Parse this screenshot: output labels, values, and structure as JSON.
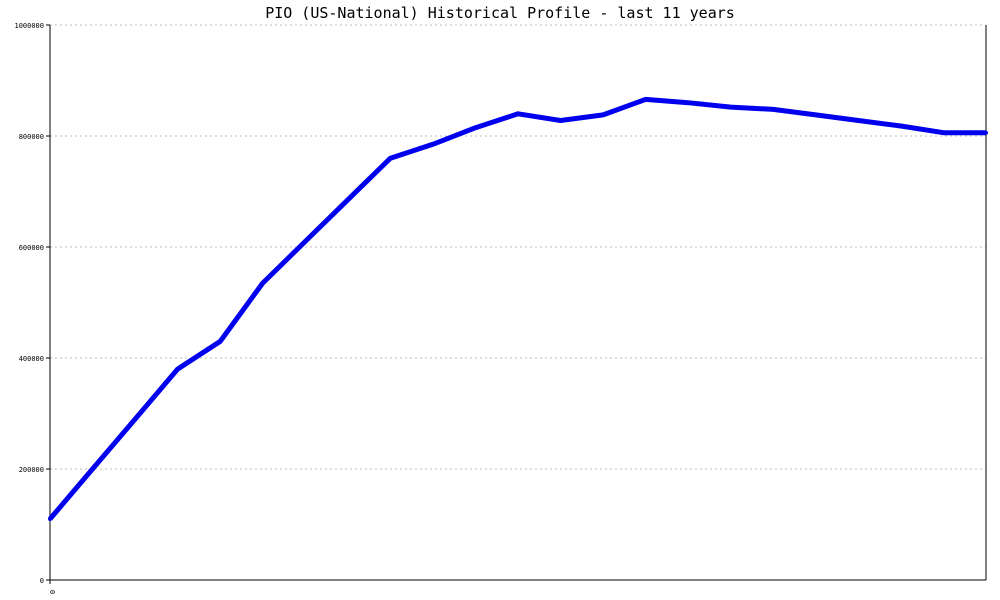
{
  "chart_data": {
    "type": "line",
    "title": "PIO (US-National) Historical Profile - last 11 years",
    "xlabel": "",
    "ylabel": "",
    "ylim": [
      0,
      1000000
    ],
    "yticks": [
      "0",
      "200000",
      "400000",
      "600000",
      "800000",
      "1000000"
    ],
    "xticks": [
      "0"
    ],
    "grid": true,
    "line_color": "#0000ee",
    "series": [
      {
        "x": [
          0,
          1,
          2,
          3,
          4,
          5,
          6,
          7,
          8,
          9,
          10,
          11,
          12,
          13,
          14,
          15,
          16,
          17,
          18,
          19,
          20,
          21,
          22
        ],
        "values": [
          110000,
          200000,
          290000,
          380000,
          430000,
          535000,
          610000,
          685000,
          760000,
          785000,
          815000,
          840000,
          828000,
          838000,
          866000,
          860000,
          852000,
          848000,
          838000,
          828000,
          818000,
          806000,
          806000
        ]
      }
    ]
  }
}
